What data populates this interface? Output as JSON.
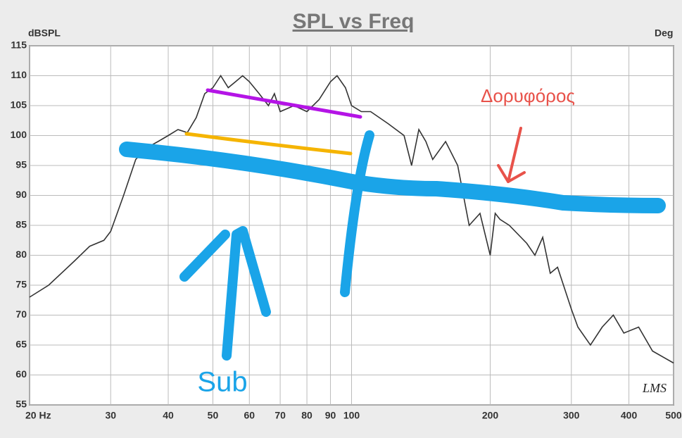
{
  "chart_data": {
    "type": "line",
    "title": "SPL vs Freq",
    "y_label": "dBSPL",
    "y2_label": "Deg",
    "x": [
      20,
      22,
      25,
      27,
      29,
      30,
      32,
      34,
      36,
      38,
      40,
      42,
      44,
      46,
      48,
      50,
      52,
      54,
      56,
      58,
      60,
      63,
      66,
      68,
      70,
      75,
      80,
      85,
      90,
      93,
      97,
      100,
      105,
      110,
      120,
      130,
      135,
      140,
      145,
      150,
      160,
      170,
      180,
      190,
      200,
      205,
      210,
      220,
      240,
      250,
      260,
      270,
      280,
      300,
      310,
      330,
      350,
      370,
      390,
      420,
      450,
      500
    ],
    "series": [
      {
        "name": "SPL",
        "color": "#333333",
        "values": [
          73,
          75,
          79,
          81.5,
          82.5,
          84,
          90,
          96,
          98,
          99,
          100,
          101,
          100.5,
          103,
          107,
          108,
          110,
          108,
          109,
          110,
          109,
          107,
          105,
          107,
          104,
          105,
          104,
          106,
          109,
          110,
          108,
          105,
          104,
          104,
          102,
          100,
          95,
          101,
          99,
          96,
          99,
          95,
          85,
          87,
          80,
          87,
          86,
          85,
          82,
          80,
          83,
          77,
          78,
          71,
          68,
          65,
          68,
          70,
          67,
          68,
          64,
          62
        ]
      }
    ],
    "xlim": [
      20,
      500
    ],
    "log_x": true,
    "xticks": [
      {
        "value": 20,
        "label": "20 Hz"
      },
      30,
      40,
      50,
      60,
      70,
      80,
      90,
      100,
      200,
      300,
      400,
      500
    ],
    "ylim": [
      55,
      115
    ],
    "yticks": [
      55,
      60,
      65,
      70,
      75,
      80,
      85,
      90,
      95,
      100,
      105,
      110,
      115
    ],
    "grid": true,
    "annotations": [
      "Sub",
      "Δορυφόρος",
      "LMS"
    ]
  }
}
